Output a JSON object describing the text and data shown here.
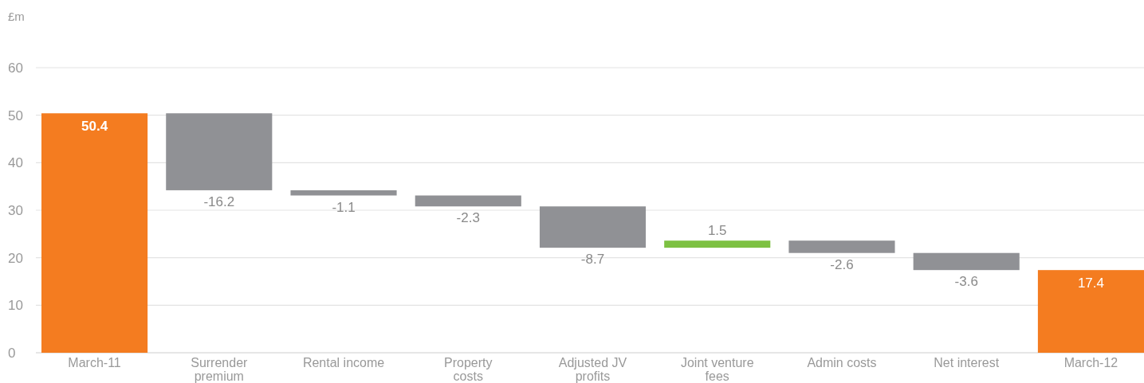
{
  "chart_data": {
    "type": "bar",
    "ylabel": "£m",
    "categories": [
      "March-11",
      "Surrender premium",
      "Rental income",
      "Property costs",
      "Adjusted JV profits",
      "Joint venture fees",
      "Admin costs",
      "Net interest",
      "March-12"
    ],
    "values": [
      50.4,
      -16.2,
      -1.1,
      -2.3,
      -8.7,
      1.5,
      -2.6,
      -3.6,
      17.4
    ],
    "base": [
      0,
      50.4,
      34.2,
      33.1,
      30.8,
      22.1,
      23.6,
      21.0,
      0
    ],
    "colors": [
      "#f47c20",
      "#909195",
      "#909195",
      "#909195",
      "#909195",
      "#7dc142",
      "#909195",
      "#909195",
      "#f47c20"
    ],
    "ylim": [
      0,
      60
    ],
    "yticks": [
      0,
      10,
      20,
      30,
      40,
      50,
      60
    ],
    "grid": "y",
    "data_labels": true
  }
}
